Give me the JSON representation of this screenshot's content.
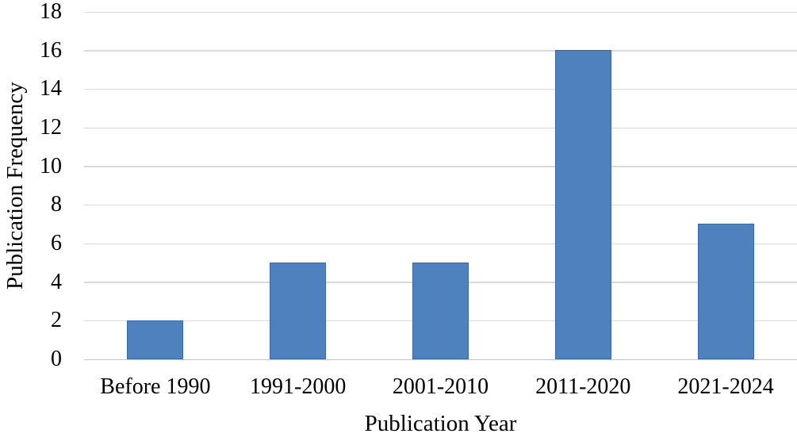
{
  "chart_data": {
    "type": "bar",
    "title": "",
    "categories": [
      "Before 1990",
      "1991-2000",
      "2001-2010",
      "2011-2020",
      "2021-2024"
    ],
    "values": [
      2,
      5,
      5,
      16,
      7
    ],
    "xlabel": "Publication Year",
    "ylabel": "Publication Frequency",
    "ylim": [
      0,
      18
    ],
    "ytick_step": 2,
    "ytick_labels": [
      "0",
      "2",
      "4",
      "6",
      "8",
      "10",
      "12",
      "14",
      "16",
      "18"
    ],
    "grid": true,
    "legend": "none",
    "bar_color": "#4E81BD",
    "bar_border_color": "#3A68A6",
    "gridline_color": "#D9D9D9",
    "text_color": "#000000",
    "background_color": "#FFFFFF"
  }
}
